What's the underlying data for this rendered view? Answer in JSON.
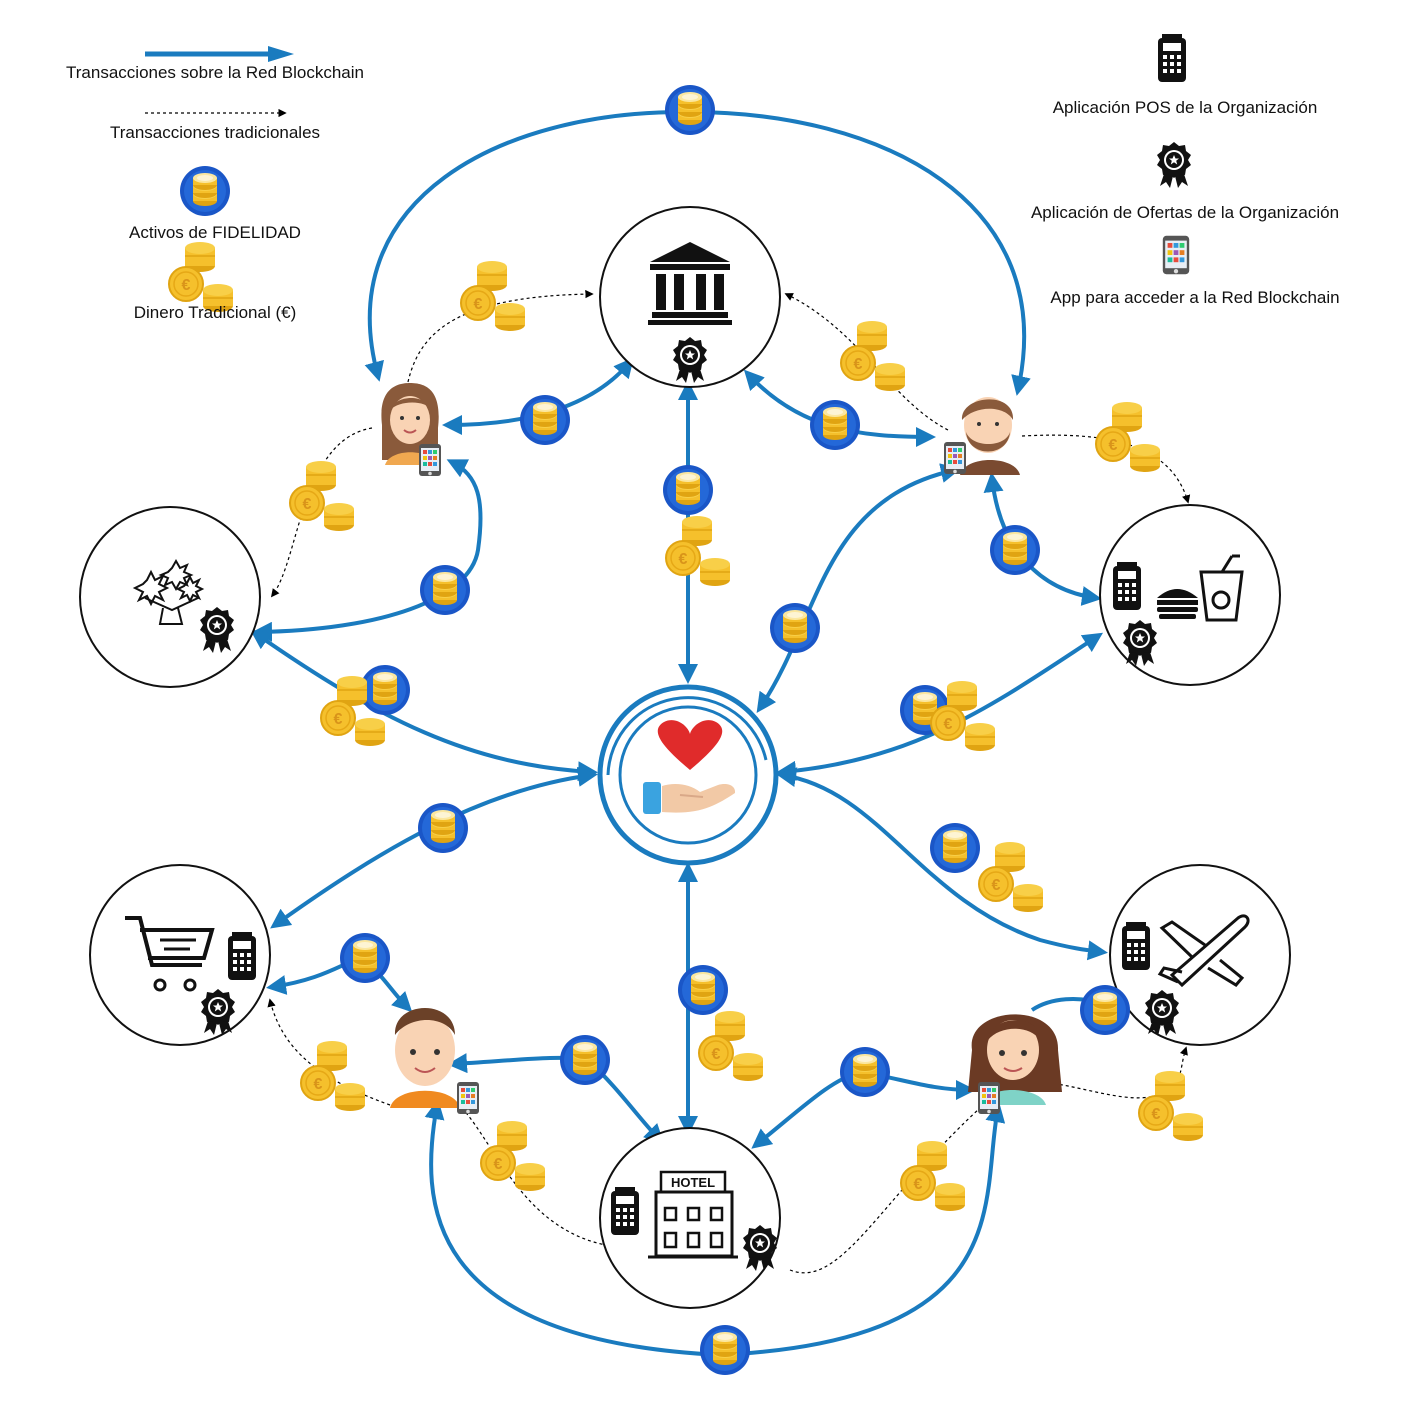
{
  "legend": {
    "blockchain_tx": "Transacciones sobre la Red Blockchain",
    "traditional_tx": "Transacciones tradicionales",
    "loyalty_assets": "Activos de FIDELIDAD",
    "traditional_money": "Dinero Tradicional (€)",
    "pos_app": "Aplicación POS de la Organización",
    "offers_app": "Aplicación de Ofertas de la Organización",
    "blockchain_app": "App para acceder a la Red Blockchain"
  },
  "hotel_sign": "HOTEL",
  "colors": {
    "blockchain_arrow": "#1a7bbf",
    "token_ring": "#1a56c7",
    "coin_gold": "#f5c02c",
    "coin_shadow": "#e0a412",
    "heart": "#e02b2b",
    "hand": "#f2c9a6",
    "sleeve": "#3aa3e0"
  },
  "nodes": [
    {
      "id": "bank",
      "icons": [
        "bank-icon",
        "award-badge-icon"
      ]
    },
    {
      "id": "flower-shop",
      "icons": [
        "flower-bouquet-icon",
        "award-badge-icon"
      ]
    },
    {
      "id": "fast-food",
      "icons": [
        "pos-terminal-icon",
        "burger-icon",
        "drink-cup-icon",
        "award-badge-icon"
      ]
    },
    {
      "id": "charity-hub",
      "icons": [
        "heart-hand-icon"
      ]
    },
    {
      "id": "supermarket",
      "icons": [
        "shopping-cart-icon",
        "pos-terminal-icon",
        "award-badge-icon"
      ]
    },
    {
      "id": "airline",
      "icons": [
        "pos-terminal-icon",
        "airplane-icon",
        "award-badge-icon"
      ]
    },
    {
      "id": "hotel",
      "icons": [
        "pos-terminal-icon",
        "hotel-icon",
        "award-badge-icon"
      ]
    }
  ],
  "people": [
    "woman-brown-hair",
    "man-beard",
    "boy-orange-shirt",
    "woman-long-hair"
  ]
}
